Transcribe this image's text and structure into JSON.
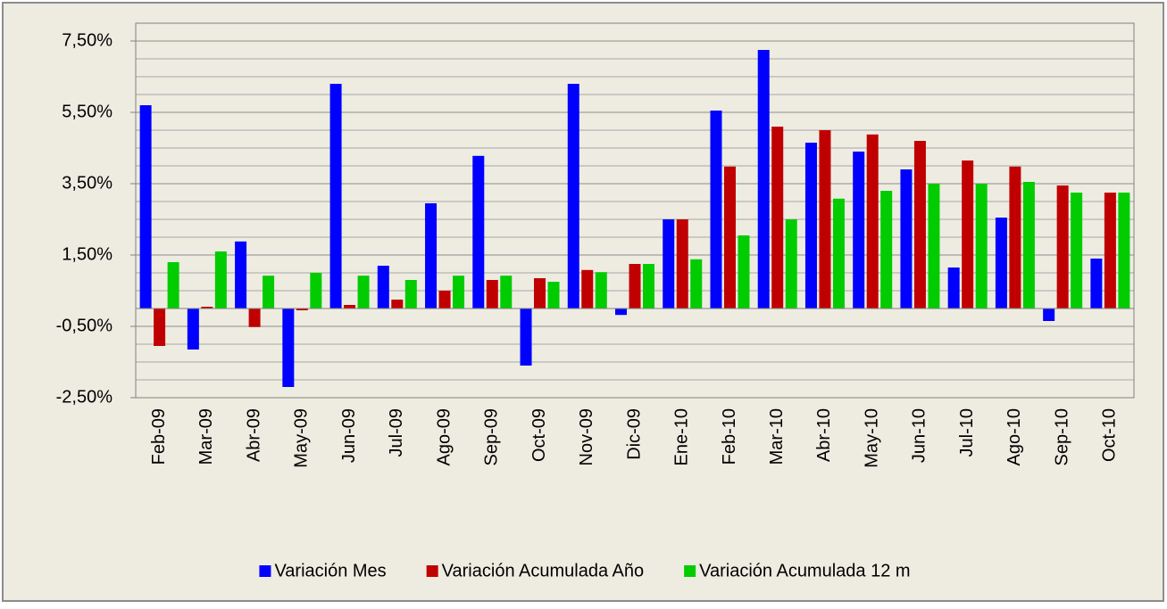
{
  "chart_data": {
    "type": "bar",
    "categories": [
      "Feb-09",
      "Mar-09",
      "Abr-09",
      "May-09",
      "Jun-09",
      "Jul-09",
      "Ago-09",
      "Sep-09",
      "Oct-09",
      "Nov-09",
      "Dic-09",
      "Ene-10",
      "Feb-10",
      "Mar-10",
      "Abr-10",
      "May-10",
      "Jun-10",
      "Jul-10",
      "Ago-10",
      "Sep-10",
      "Oct-10"
    ],
    "series": [
      {
        "name": "Variación Mes",
        "color": "#0000ff",
        "values": [
          5.7,
          -1.15,
          1.88,
          -2.2,
          6.3,
          1.2,
          2.95,
          4.28,
          -1.6,
          6.3,
          -0.18,
          2.5,
          5.55,
          7.25,
          4.65,
          4.4,
          3.9,
          1.15,
          2.55,
          -0.35,
          1.4
        ]
      },
      {
        "name": "Variación Acumulada Año",
        "color": "#c00000",
        "values": [
          -1.05,
          0.05,
          -0.52,
          -0.05,
          0.1,
          0.25,
          0.5,
          0.8,
          0.85,
          1.08,
          1.25,
          2.5,
          3.98,
          5.1,
          5.0,
          4.88,
          4.7,
          4.15,
          3.98,
          3.45,
          3.25
        ]
      },
      {
        "name": "Variación Acumulada 12 m",
        "color": "#00cc00",
        "values": [
          1.3,
          1.6,
          0.92,
          1.0,
          0.92,
          0.8,
          0.92,
          0.92,
          0.75,
          1.02,
          1.25,
          1.38,
          2.05,
          2.5,
          3.08,
          3.3,
          3.5,
          3.5,
          3.55,
          3.25,
          3.25
        ]
      }
    ],
    "ylim": [
      -2.5,
      8.0
    ],
    "yticks": [
      {
        "value": -2.5,
        "label": "-2,50%"
      },
      {
        "value": -0.5,
        "label": "-0,50%"
      },
      {
        "value": 1.5,
        "label": "1,50%"
      },
      {
        "value": 3.5,
        "label": "3,50%"
      },
      {
        "value": 5.5,
        "label": "5,50%"
      },
      {
        "value": 7.5,
        "label": "7,50%"
      }
    ],
    "grid": true,
    "minor_grid": true,
    "legend": "bottom"
  }
}
